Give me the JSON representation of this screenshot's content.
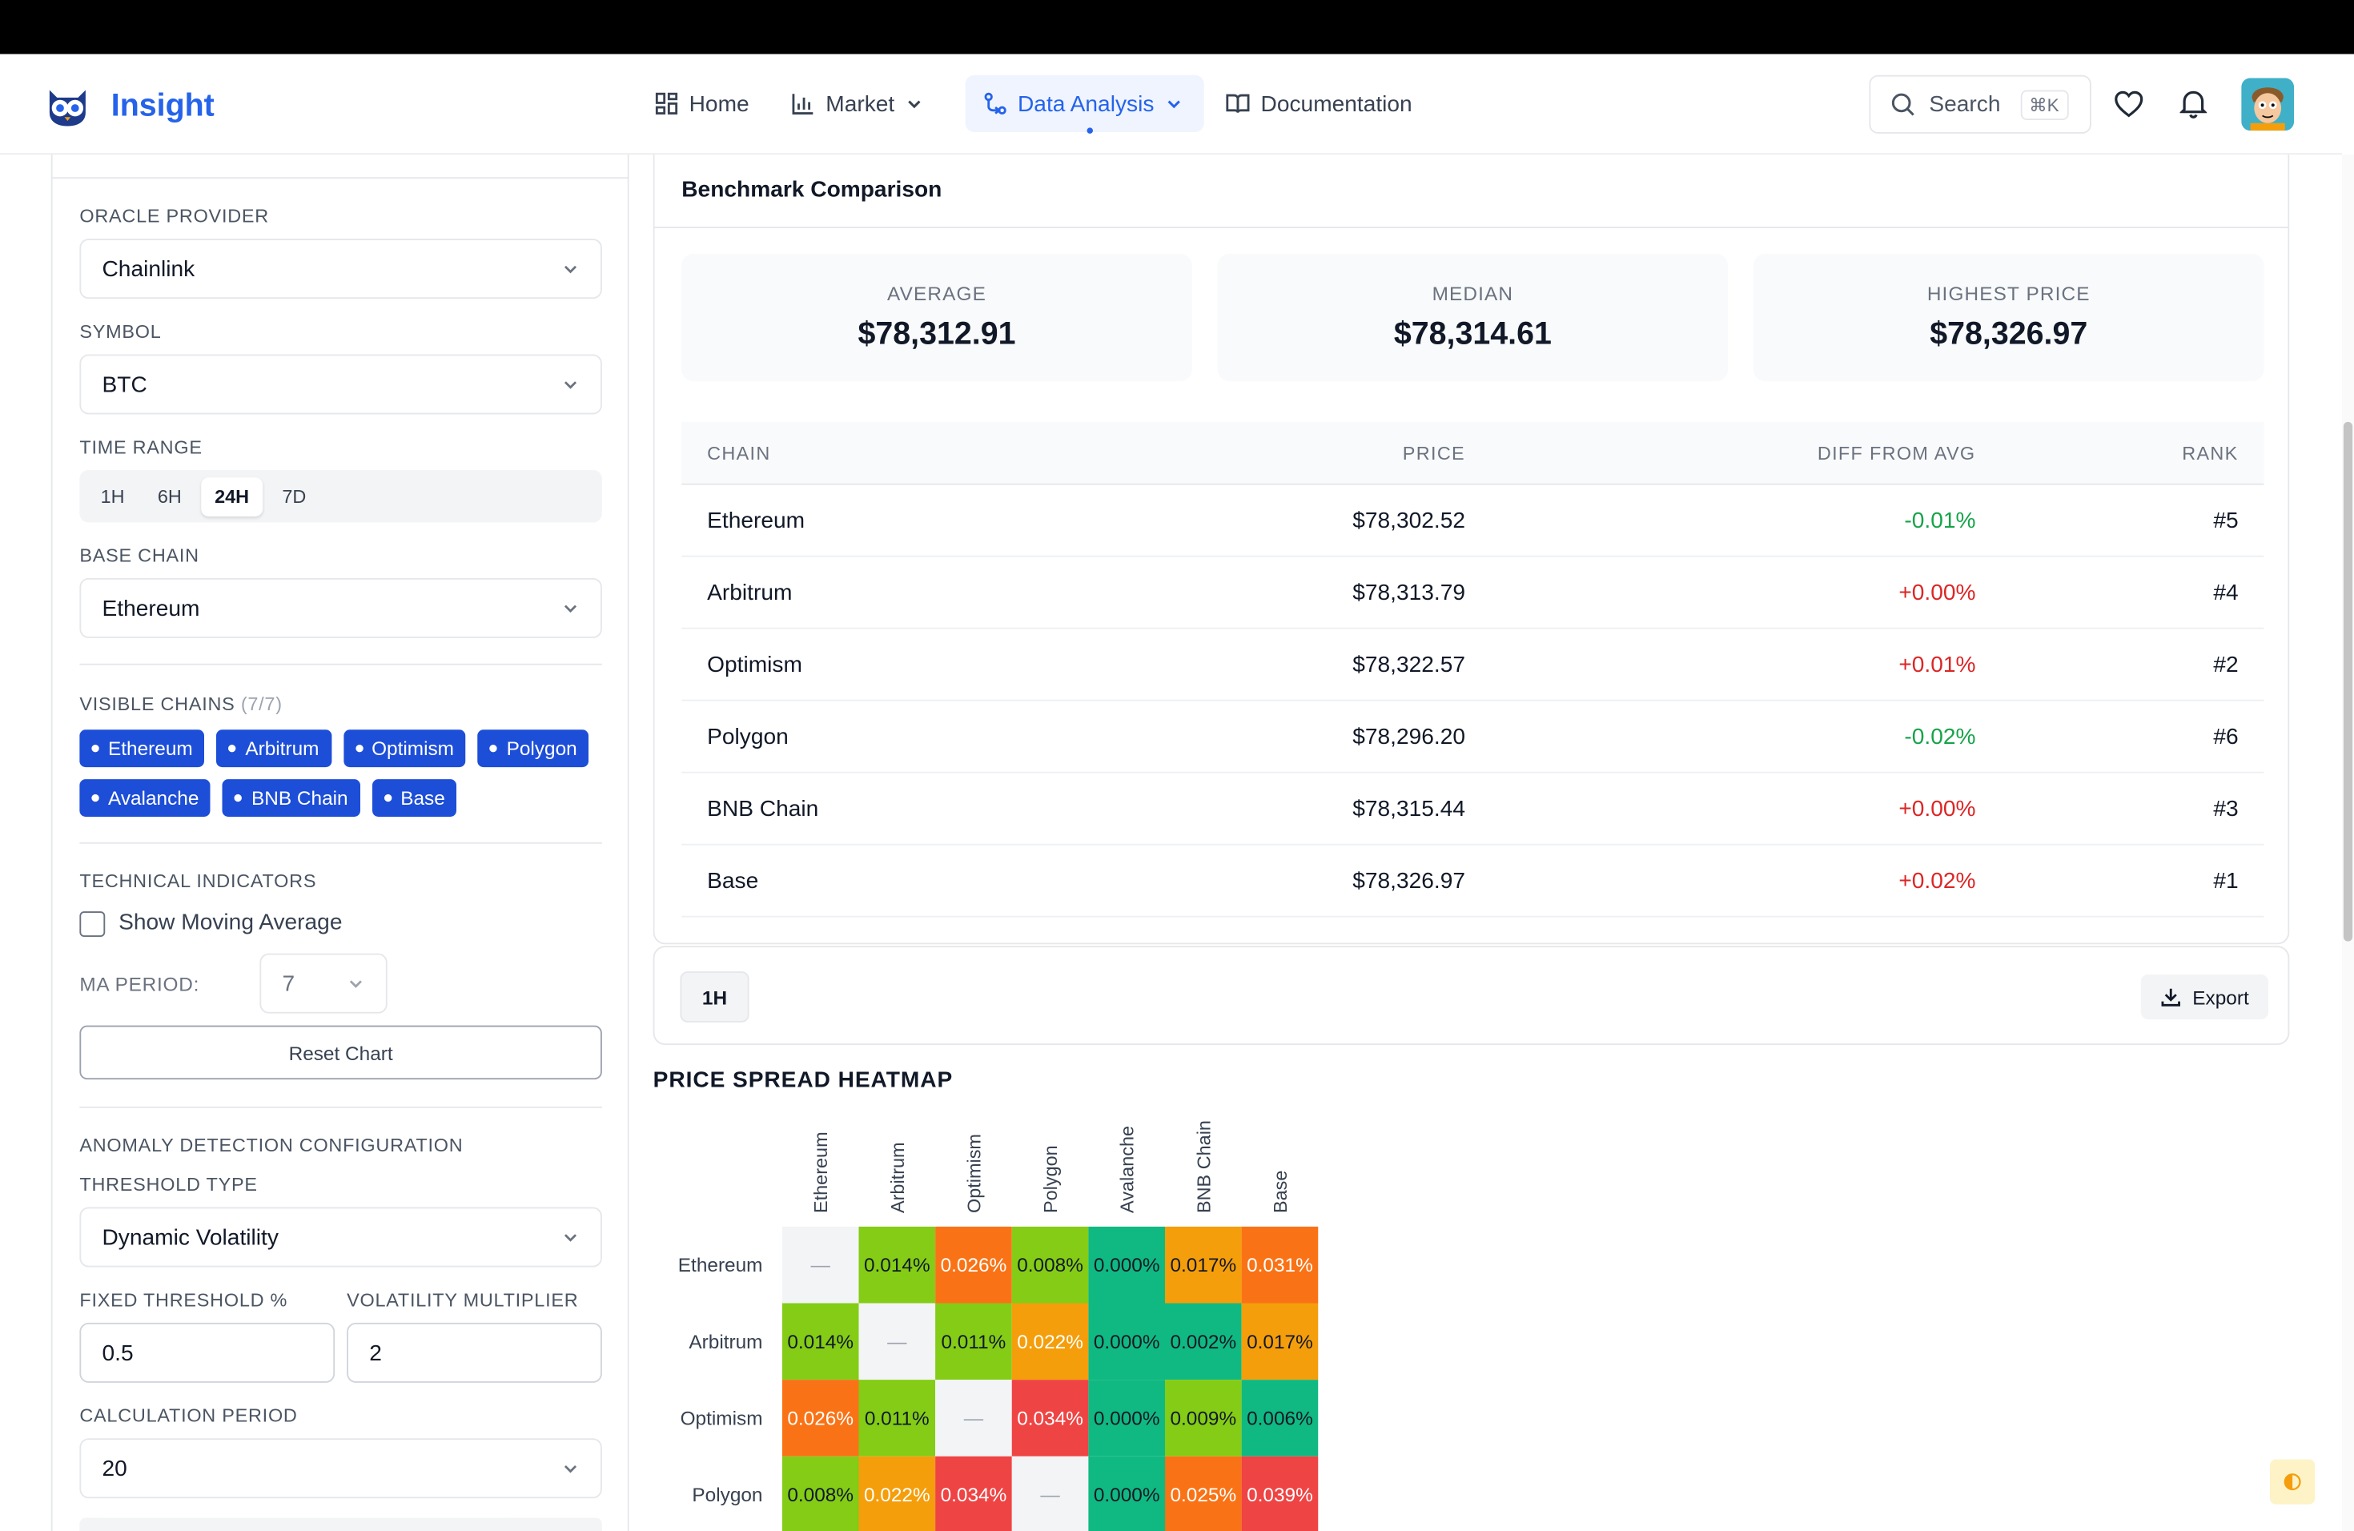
{
  "app": {
    "title": "Insight"
  },
  "nav": {
    "items": [
      {
        "label": "Home",
        "icon": "grid-icon"
      },
      {
        "label": "Market",
        "icon": "bar-chart-icon"
      },
      {
        "label": "Data Analysis",
        "icon": "branch-icon"
      },
      {
        "label": "Documentation",
        "icon": "book-icon"
      }
    ],
    "active": "Data Analysis",
    "search_label": "Search",
    "search_shortcut": "⌘K"
  },
  "sidebar": {
    "oracle_label": "ORACLE PROVIDER",
    "oracle_value": "Chainlink",
    "symbol_label": "SYMBOL",
    "symbol_value": "BTC",
    "time_range_label": "TIME RANGE",
    "time_ranges": [
      "1H",
      "6H",
      "24H",
      "7D"
    ],
    "time_range_selected": "24H",
    "base_chain_label": "BASE CHAIN",
    "base_chain_value": "Ethereum",
    "visible_chains_label": "VISIBLE CHAINS",
    "visible_chains_count": "(7/7)",
    "chains": [
      "Ethereum",
      "Arbitrum",
      "Optimism",
      "Polygon",
      "Avalanche",
      "BNB Chain",
      "Base"
    ],
    "tech_label": "TECHNICAL INDICATORS",
    "show_ma_label": "Show Moving Average",
    "ma_period_label": "MA PERIOD:",
    "ma_period_value": "7",
    "reset_label": "Reset Chart",
    "anomaly_label": "ANOMALY DETECTION CONFIGURATION",
    "threshold_type_label": "THRESHOLD TYPE",
    "threshold_type_value": "Dynamic Volatility",
    "fixed_threshold_label": "FIXED THRESHOLD %",
    "fixed_threshold_value": "0.5",
    "vol_mult_label": "VOLATILITY MULTIPLIER",
    "vol_mult_value": "2",
    "calc_period_label": "CALCULATION PERIOD",
    "calc_period_value": "20"
  },
  "benchmark": {
    "title": "Benchmark Comparison",
    "stats": [
      {
        "label": "AVERAGE",
        "value": "$78,312.91"
      },
      {
        "label": "MEDIAN",
        "value": "$78,314.61"
      },
      {
        "label": "HIGHEST PRICE",
        "value": "$78,326.97"
      }
    ],
    "columns": [
      "CHAIN",
      "PRICE",
      "DIFF FROM AVG",
      "RANK"
    ],
    "rows": [
      {
        "chain": "Ethereum",
        "price": "$78,302.52",
        "diff": "-0.01%",
        "rank": "#5",
        "sign": "neg"
      },
      {
        "chain": "Arbitrum",
        "price": "$78,313.79",
        "diff": "+0.00%",
        "rank": "#4",
        "sign": "pos"
      },
      {
        "chain": "Optimism",
        "price": "$78,322.57",
        "diff": "+0.01%",
        "rank": "#2",
        "sign": "pos"
      },
      {
        "chain": "Polygon",
        "price": "$78,296.20",
        "diff": "-0.02%",
        "rank": "#6",
        "sign": "neg"
      },
      {
        "chain": "BNB Chain",
        "price": "$78,315.44",
        "diff": "+0.00%",
        "rank": "#3",
        "sign": "pos"
      },
      {
        "chain": "Base",
        "price": "$78,326.97",
        "diff": "+0.02%",
        "rank": "#1",
        "sign": "pos"
      }
    ],
    "colors": {
      "negative": "#16a34a",
      "positive": "#dc2626"
    }
  },
  "toolbar": {
    "interval": "1H",
    "export_label": "Export"
  },
  "heatmap": {
    "title": "PRICE SPREAD HEATMAP",
    "columns": [
      "Ethereum",
      "Arbitrum",
      "Optimism",
      "Polygon",
      "Avalanche",
      "BNB Chain",
      "Base"
    ],
    "rows": [
      {
        "label": "Ethereum",
        "cells": [
          {
            "v": "—",
            "c": "#f3f4f6",
            "t": "#9ca3af"
          },
          {
            "v": "0.014%",
            "c": "#84cc16",
            "t": "#111827"
          },
          {
            "v": "0.026%",
            "c": "#f97316",
            "t": "#ffffff"
          },
          {
            "v": "0.008%",
            "c": "#84cc16",
            "t": "#111827"
          },
          {
            "v": "0.000%",
            "c": "#10b981",
            "t": "#111827"
          },
          {
            "v": "0.017%",
            "c": "#f59e0b",
            "t": "#111827"
          },
          {
            "v": "0.031%",
            "c": "#f97316",
            "t": "#ffffff"
          }
        ]
      },
      {
        "label": "Arbitrum",
        "cells": [
          {
            "v": "0.014%",
            "c": "#84cc16",
            "t": "#111827"
          },
          {
            "v": "—",
            "c": "#f3f4f6",
            "t": "#9ca3af"
          },
          {
            "v": "0.011%",
            "c": "#84cc16",
            "t": "#111827"
          },
          {
            "v": "0.022%",
            "c": "#f59e0b",
            "t": "#ffffff"
          },
          {
            "v": "0.000%",
            "c": "#10b981",
            "t": "#111827"
          },
          {
            "v": "0.002%",
            "c": "#10b981",
            "t": "#111827"
          },
          {
            "v": "0.017%",
            "c": "#f59e0b",
            "t": "#111827"
          }
        ]
      },
      {
        "label": "Optimism",
        "cells": [
          {
            "v": "0.026%",
            "c": "#f97316",
            "t": "#ffffff"
          },
          {
            "v": "0.011%",
            "c": "#84cc16",
            "t": "#111827"
          },
          {
            "v": "—",
            "c": "#f3f4f6",
            "t": "#9ca3af"
          },
          {
            "v": "0.034%",
            "c": "#ef4444",
            "t": "#ffffff"
          },
          {
            "v": "0.000%",
            "c": "#10b981",
            "t": "#111827"
          },
          {
            "v": "0.009%",
            "c": "#84cc16",
            "t": "#111827"
          },
          {
            "v": "0.006%",
            "c": "#10b981",
            "t": "#111827"
          }
        ]
      },
      {
        "label": "Polygon",
        "cells": [
          {
            "v": "0.008%",
            "c": "#84cc16",
            "t": "#111827"
          },
          {
            "v": "0.022%",
            "c": "#f59e0b",
            "t": "#ffffff"
          },
          {
            "v": "0.034%",
            "c": "#ef4444",
            "t": "#ffffff"
          },
          {
            "v": "—",
            "c": "#f3f4f6",
            "t": "#9ca3af"
          },
          {
            "v": "0.000%",
            "c": "#10b981",
            "t": "#111827"
          },
          {
            "v": "0.025%",
            "c": "#f97316",
            "t": "#ffffff"
          },
          {
            "v": "0.039%",
            "c": "#ef4444",
            "t": "#ffffff"
          }
        ]
      }
    ]
  }
}
